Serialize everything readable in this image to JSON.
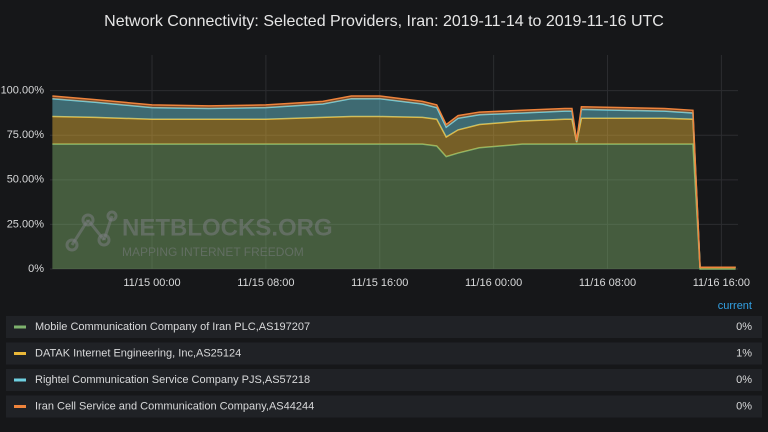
{
  "chart_data": {
    "type": "stacked-area",
    "title": "Network Connectivity: Selected Providers, Iran: 2019-11-14 to 2019-11-16 UTC",
    "x": [
      "11/14 17:00",
      "11/14 20:00",
      "11/15 00:00",
      "11/15 04:00",
      "11/15 08:00",
      "11/15 12:00",
      "11/15 14:00",
      "11/15 16:00",
      "11/15 19:00",
      "11/15 20:00",
      "11/15 20:40",
      "11/15 21:30",
      "11/15 23:00",
      "11/16 02:00",
      "11/16 05:00",
      "11/16 05:30",
      "11/16 05:50",
      "11/16 06:10",
      "11/16 12:00",
      "11/16 14:00",
      "11/16 14:30",
      "11/16 17:00"
    ],
    "series": [
      {
        "name": "Mobile Communication Company of Iran PLC,AS197207",
        "color": "#7eb26d",
        "current": "0%",
        "values": [
          70,
          70,
          70,
          70,
          70,
          70,
          70,
          70,
          70,
          69,
          63,
          65,
          68,
          70,
          70,
          70,
          70,
          70,
          70,
          70,
          0,
          0
        ]
      },
      {
        "name": "DATAK Internet Engineering, Inc,AS25124",
        "color": "#eab839",
        "current": "1%",
        "values": [
          15.5,
          15,
          14,
          14,
          14,
          15,
          15.5,
          15.5,
          15,
          15,
          11,
          13,
          13,
          13,
          14,
          14,
          1,
          14.5,
          14.5,
          14,
          1,
          1
        ]
      },
      {
        "name": "Rightel Communication Service Company PJS,AS57218",
        "color": "#6ed0e0",
        "current": "0%",
        "values": [
          10,
          8.5,
          6.5,
          6,
          6.5,
          7.5,
          10,
          10,
          7.5,
          6.5,
          5.5,
          6.5,
          5.5,
          4.5,
          4.5,
          4.5,
          0.5,
          5,
          4,
          3.5,
          0,
          0
        ]
      },
      {
        "name": "Iran Cell Service and Communication Company,AS44244",
        "color": "#ef843c",
        "current": "0%",
        "values": [
          1.5,
          1.5,
          1.5,
          1.5,
          1.5,
          1.5,
          1.5,
          1.5,
          1.5,
          1.5,
          1.5,
          1.5,
          1.5,
          1.5,
          1.5,
          1.5,
          0.5,
          1.5,
          1.5,
          1.5,
          0,
          0
        ]
      }
    ],
    "xlim": [
      "11/14 16:50",
      "11/16 17:10"
    ],
    "xticks": [
      "11/15 00:00",
      "11/15 08:00",
      "11/15 16:00",
      "11/16 00:00",
      "11/16 08:00",
      "11/16 16:00"
    ],
    "ylim": [
      0,
      120
    ],
    "yticks": [
      {
        "value": 0,
        "label": "0%"
      },
      {
        "value": 25,
        "label": "25.00%"
      },
      {
        "value": 50,
        "label": "50.00%"
      },
      {
        "value": 75,
        "label": "75.00%"
      },
      {
        "value": 100,
        "label": "100.00%"
      }
    ],
    "grid": true,
    "legend_column": "current",
    "watermark": {
      "title": "NETBLOCKS.ORG",
      "subtitle": "MAPPING INTERNET FREEDOM"
    }
  }
}
